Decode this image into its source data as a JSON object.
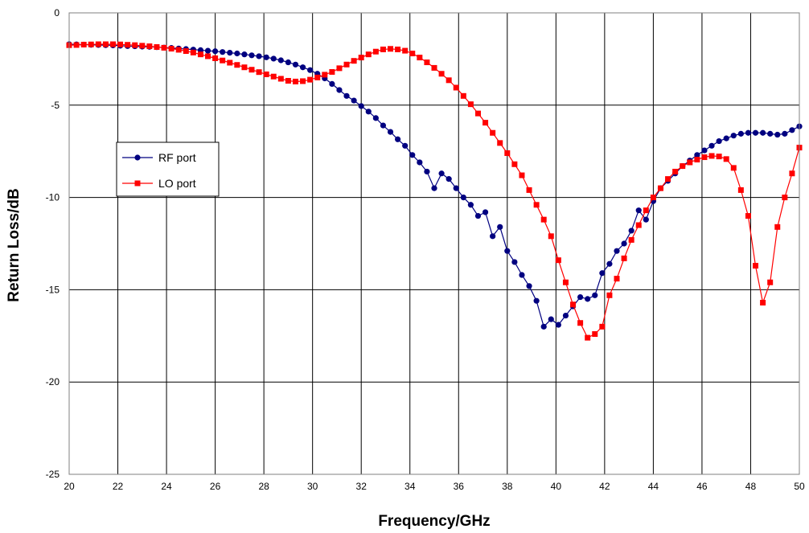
{
  "chart_data": {
    "type": "line",
    "xlabel": "Frequency/GHz",
    "ylabel": "Return Loss/dB",
    "xlim": [
      20,
      50
    ],
    "ylim": [
      -25,
      0
    ],
    "x_ticks": [
      20,
      22,
      24,
      26,
      28,
      30,
      32,
      34,
      36,
      38,
      40,
      42,
      44,
      46,
      48,
      50
    ],
    "y_ticks": [
      0,
      -5,
      -10,
      -15,
      -20,
      -25
    ],
    "grid": true,
    "legend_position": "left",
    "series": [
      {
        "name": "RF port",
        "color": "#000080",
        "marker": "circle",
        "x": [
          20.0,
          20.3,
          20.6,
          20.9,
          21.2,
          21.5,
          21.8,
          22.1,
          22.4,
          22.7,
          23.0,
          23.3,
          23.6,
          23.9,
          24.2,
          24.5,
          24.8,
          25.1,
          25.4,
          25.7,
          26.0,
          26.3,
          26.6,
          26.9,
          27.2,
          27.5,
          27.8,
          28.1,
          28.4,
          28.7,
          29.0,
          29.3,
          29.6,
          29.9,
          30.2,
          30.5,
          30.8,
          31.1,
          31.4,
          31.7,
          32.0,
          32.3,
          32.6,
          32.9,
          33.2,
          33.5,
          33.8,
          34.1,
          34.4,
          34.7,
          35.0,
          35.3,
          35.6,
          35.9,
          36.2,
          36.5,
          36.8,
          37.1,
          37.4,
          37.7,
          38.0,
          38.3,
          38.6,
          38.9,
          39.2,
          39.5,
          39.8,
          40.1,
          40.4,
          40.7,
          41.0,
          41.3,
          41.6,
          41.9,
          42.2,
          42.5,
          42.8,
          43.1,
          43.4,
          43.7,
          44.0,
          44.3,
          44.6,
          44.9,
          45.2,
          45.5,
          45.8,
          46.1,
          46.4,
          46.7,
          47.0,
          47.3,
          47.6,
          47.9,
          48.2,
          48.5,
          48.8,
          49.1,
          49.4,
          49.7,
          50.0
        ],
        "y": [
          -1.7,
          -1.71,
          -1.72,
          -1.73,
          -1.74,
          -1.75,
          -1.76,
          -1.78,
          -1.8,
          -1.81,
          -1.83,
          -1.84,
          -1.86,
          -1.88,
          -1.9,
          -1.93,
          -1.96,
          -1.99,
          -2.02,
          -2.05,
          -2.08,
          -2.12,
          -2.16,
          -2.2,
          -2.25,
          -2.3,
          -2.35,
          -2.41,
          -2.48,
          -2.57,
          -2.68,
          -2.8,
          -2.95,
          -3.1,
          -3.3,
          -3.55,
          -3.85,
          -4.18,
          -4.5,
          -4.75,
          -5.05,
          -5.35,
          -5.7,
          -6.1,
          -6.45,
          -6.85,
          -7.2,
          -7.7,
          -8.1,
          -8.6,
          -9.5,
          -8.7,
          -9.0,
          -9.5,
          -10.0,
          -10.4,
          -11.0,
          -10.8,
          -12.1,
          -11.6,
          -12.9,
          -13.5,
          -14.2,
          -14.8,
          -15.6,
          -17.0,
          -16.6,
          -16.9,
          -16.4,
          -15.9,
          -15.4,
          -15.5,
          -15.3,
          -14.1,
          -13.6,
          -12.9,
          -12.5,
          -11.8,
          -10.7,
          -11.2,
          -10.2,
          -9.5,
          -9.1,
          -8.7,
          -8.3,
          -8.0,
          -7.7,
          -7.45,
          -7.2,
          -6.95,
          -6.8,
          -6.65,
          -6.55,
          -6.5,
          -6.5,
          -6.5,
          -6.55,
          -6.6,
          -6.55,
          -6.35,
          -6.15
        ]
      },
      {
        "name": "LO port",
        "color": "#ff0000",
        "marker": "square",
        "x": [
          20.0,
          20.3,
          20.6,
          20.9,
          21.2,
          21.5,
          21.8,
          22.1,
          22.4,
          22.7,
          23.0,
          23.3,
          23.6,
          23.9,
          24.2,
          24.5,
          24.8,
          25.1,
          25.4,
          25.7,
          26.0,
          26.3,
          26.6,
          26.9,
          27.2,
          27.5,
          27.8,
          28.1,
          28.4,
          28.7,
          29.0,
          29.3,
          29.6,
          29.9,
          30.2,
          30.5,
          30.8,
          31.1,
          31.4,
          31.7,
          32.0,
          32.3,
          32.6,
          32.9,
          33.2,
          33.5,
          33.8,
          34.1,
          34.4,
          34.7,
          35.0,
          35.3,
          35.6,
          35.9,
          36.2,
          36.5,
          36.8,
          37.1,
          37.4,
          37.7,
          38.0,
          38.3,
          38.6,
          38.9,
          39.2,
          39.5,
          39.8,
          40.1,
          40.4,
          40.7,
          41.0,
          41.3,
          41.6,
          41.9,
          42.2,
          42.5,
          42.8,
          43.1,
          43.4,
          43.7,
          44.0,
          44.3,
          44.6,
          44.9,
          45.2,
          45.5,
          45.8,
          46.1,
          46.4,
          46.7,
          47.0,
          47.3,
          47.6,
          47.9,
          48.2,
          48.5,
          48.8,
          49.1,
          49.4,
          49.7,
          50.0
        ],
        "y": [
          -1.75,
          -1.74,
          -1.72,
          -1.71,
          -1.7,
          -1.7,
          -1.7,
          -1.71,
          -1.73,
          -1.75,
          -1.78,
          -1.81,
          -1.85,
          -1.89,
          -1.94,
          -2.0,
          -2.07,
          -2.15,
          -2.25,
          -2.35,
          -2.46,
          -2.58,
          -2.7,
          -2.82,
          -2.95,
          -3.08,
          -3.21,
          -3.33,
          -3.45,
          -3.57,
          -3.68,
          -3.72,
          -3.7,
          -3.62,
          -3.5,
          -3.35,
          -3.2,
          -3.0,
          -2.8,
          -2.6,
          -2.42,
          -2.25,
          -2.1,
          -1.98,
          -1.95,
          -1.98,
          -2.05,
          -2.2,
          -2.42,
          -2.68,
          -2.98,
          -3.3,
          -3.65,
          -4.05,
          -4.5,
          -4.95,
          -5.45,
          -5.95,
          -6.5,
          -7.05,
          -7.6,
          -8.2,
          -8.8,
          -9.6,
          -10.4,
          -11.2,
          -12.1,
          -13.4,
          -14.6,
          -15.8,
          -16.8,
          -17.6,
          -17.4,
          -17.0,
          -15.3,
          -14.4,
          -13.3,
          -12.3,
          -11.5,
          -10.7,
          -10.0,
          -9.5,
          -9.0,
          -8.6,
          -8.3,
          -8.1,
          -7.95,
          -7.82,
          -7.75,
          -7.78,
          -7.92,
          -8.4,
          -9.6,
          -11.0,
          -13.7,
          -15.7,
          -14.6,
          -11.6,
          -10.0,
          -8.7,
          -7.3
        ]
      }
    ]
  }
}
